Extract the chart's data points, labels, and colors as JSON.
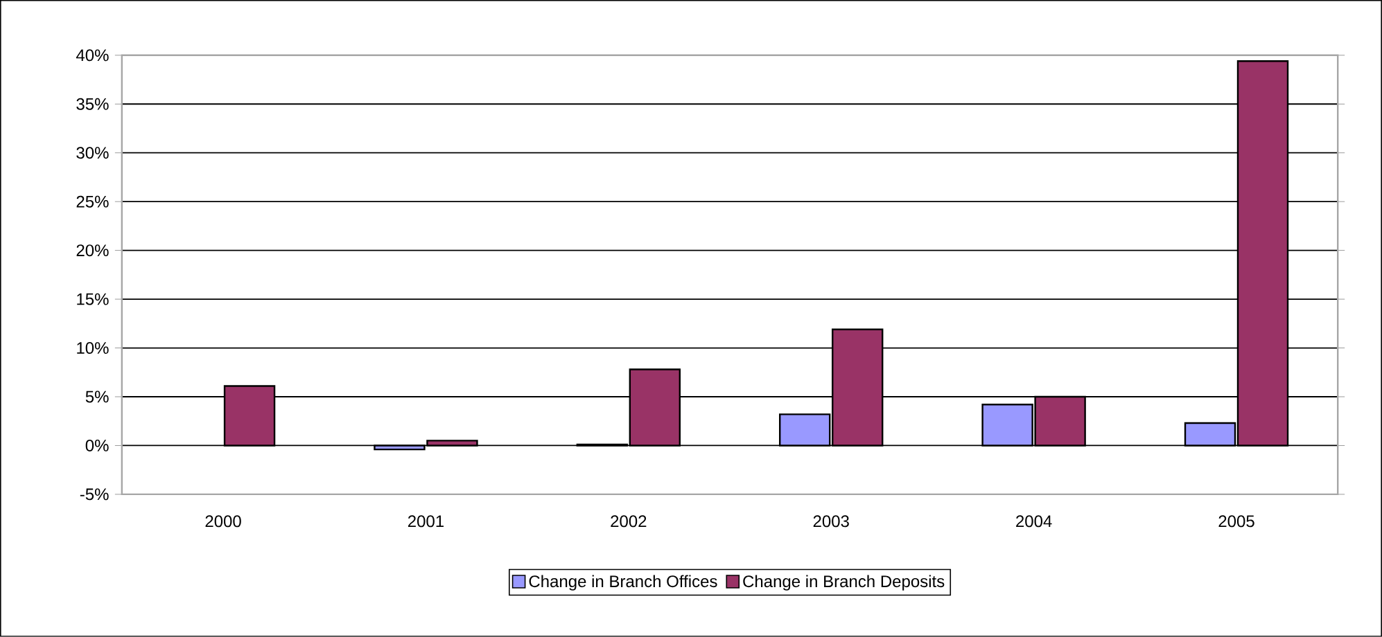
{
  "chart_data": {
    "type": "bar",
    "categories": [
      "2000",
      "2001",
      "2002",
      "2003",
      "2004",
      "2005"
    ],
    "series": [
      {
        "name": "Change in Branch Offices",
        "color": "#9999ff",
        "values": [
          null,
          -0.4,
          0.1,
          3.2,
          4.2,
          2.3
        ]
      },
      {
        "name": "Change in Branch Deposits",
        "color": "#993366",
        "values": [
          6.1,
          0.5,
          7.8,
          11.9,
          5.0,
          39.4
        ]
      }
    ],
    "ylim": [
      -5,
      40
    ],
    "yticks": [
      {
        "value": -5,
        "label": "-5%"
      },
      {
        "value": 0,
        "label": "0%"
      },
      {
        "value": 5,
        "label": "5%"
      },
      {
        "value": 10,
        "label": "10%"
      },
      {
        "value": 15,
        "label": "15%"
      },
      {
        "value": 20,
        "label": "20%"
      },
      {
        "value": 25,
        "label": "25%"
      },
      {
        "value": 30,
        "label": "30%"
      },
      {
        "value": 35,
        "label": "35%"
      },
      {
        "value": 40,
        "label": "40%"
      }
    ],
    "grid": "y",
    "legend": "bottom"
  }
}
